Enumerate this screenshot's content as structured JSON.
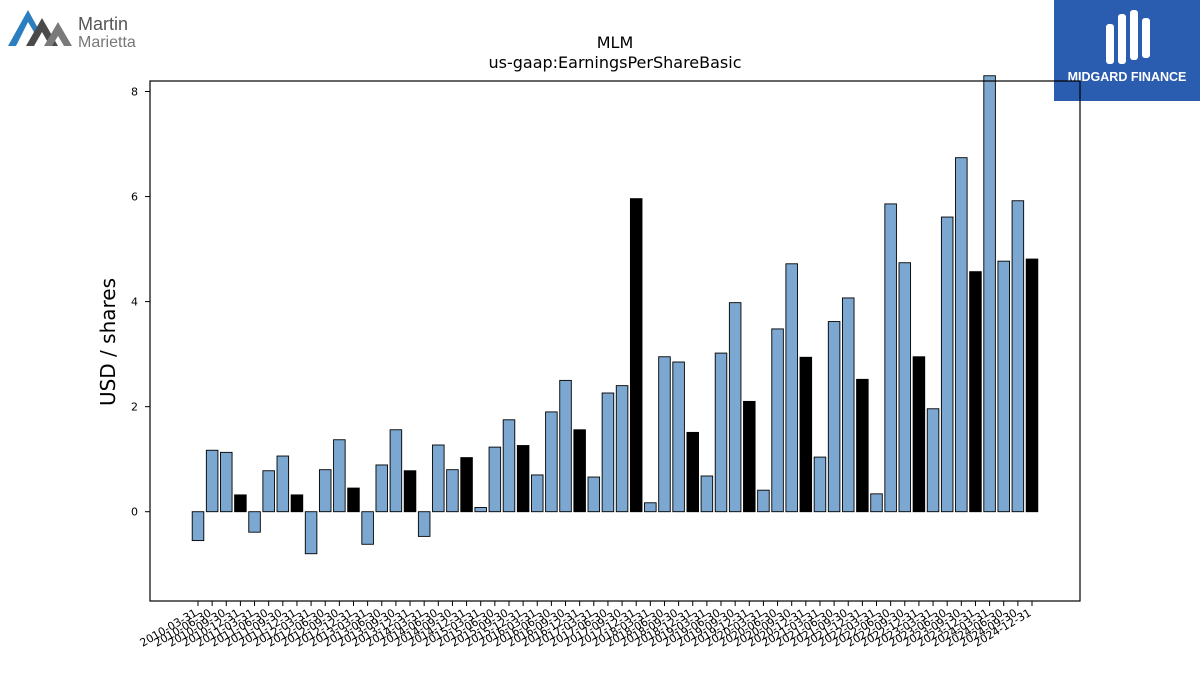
{
  "logos": {
    "left_line1": "Martin",
    "left_line2": "Marietta",
    "right_text": "MIDGARD FINANCE"
  },
  "colors": {
    "quarter_bar": "#7ba7d0",
    "annual_bar": "#000000",
    "bar_edge": "#000000",
    "right_logo_bg": "#2a5cb0"
  },
  "chart_data": {
    "type": "bar",
    "title": "MLM",
    "subtitle": "us-gaap:EarningsPerShareBasic",
    "xlabel": "",
    "ylabel": "USD / shares",
    "ylim": [
      -1.7,
      8.2
    ],
    "yticks": [
      0,
      2,
      4,
      6,
      8
    ],
    "grid": false,
    "categories": [
      "2010-03-31",
      "2010-06-30",
      "2010-09-30",
      "2010-12-31",
      "2011-03-31",
      "2011-06-30",
      "2011-09-30",
      "2011-12-31",
      "2012-03-31",
      "2012-06-30",
      "2012-09-30",
      "2012-12-31",
      "2013-03-31",
      "2013-06-30",
      "2013-09-30",
      "2013-12-31",
      "2014-03-31",
      "2014-06-30",
      "2014-09-30",
      "2014-12-31",
      "2015-03-31",
      "2015-06-30",
      "2015-09-30",
      "2015-12-31",
      "2016-03-31",
      "2016-06-30",
      "2016-09-30",
      "2016-12-31",
      "2017-03-31",
      "2017-06-30",
      "2017-09-30",
      "2017-12-31",
      "2018-03-31",
      "2018-06-30",
      "2018-09-30",
      "2018-12-31",
      "2019-03-31",
      "2019-06-30",
      "2019-09-30",
      "2019-12-31",
      "2020-03-31",
      "2020-06-30",
      "2020-09-30",
      "2020-12-31",
      "2021-03-31",
      "2021-06-30",
      "2021-09-30",
      "2021-12-31",
      "2022-03-31",
      "2022-06-30",
      "2022-09-30",
      "2022-12-31",
      "2023-03-31",
      "2023-06-30",
      "2023-09-30",
      "2023-12-31",
      "2024-03-31",
      "2024-06-30",
      "2024-09-30",
      "2024-12-31"
    ],
    "values": [
      -0.55,
      1.17,
      1.13,
      0.32,
      -0.39,
      0.78,
      1.06,
      0.32,
      -0.8,
      0.8,
      1.37,
      0.45,
      -0.62,
      0.89,
      1.56,
      0.78,
      -0.47,
      1.27,
      0.8,
      1.03,
      0.08,
      1.23,
      1.75,
      1.26,
      0.7,
      1.9,
      2.5,
      1.56,
      0.66,
      2.26,
      2.4,
      5.96,
      0.17,
      2.95,
      2.85,
      1.51,
      0.68,
      3.02,
      3.98,
      2.1,
      0.41,
      3.48,
      4.72,
      2.94,
      1.04,
      3.62,
      4.07,
      2.52,
      0.34,
      5.86,
      4.74,
      2.95,
      1.96,
      5.61,
      6.74,
      4.57,
      8.3,
      4.77,
      5.92,
      4.81
    ],
    "annual_flags": [
      false,
      false,
      false,
      true,
      false,
      false,
      false,
      true,
      false,
      false,
      false,
      true,
      false,
      false,
      false,
      true,
      false,
      false,
      false,
      true,
      false,
      false,
      false,
      true,
      false,
      false,
      false,
      true,
      false,
      false,
      false,
      true,
      false,
      false,
      false,
      true,
      false,
      false,
      false,
      true,
      false,
      false,
      false,
      true,
      false,
      false,
      false,
      true,
      false,
      false,
      false,
      true,
      false,
      false,
      false,
      true,
      false,
      false,
      false,
      true
    ]
  }
}
